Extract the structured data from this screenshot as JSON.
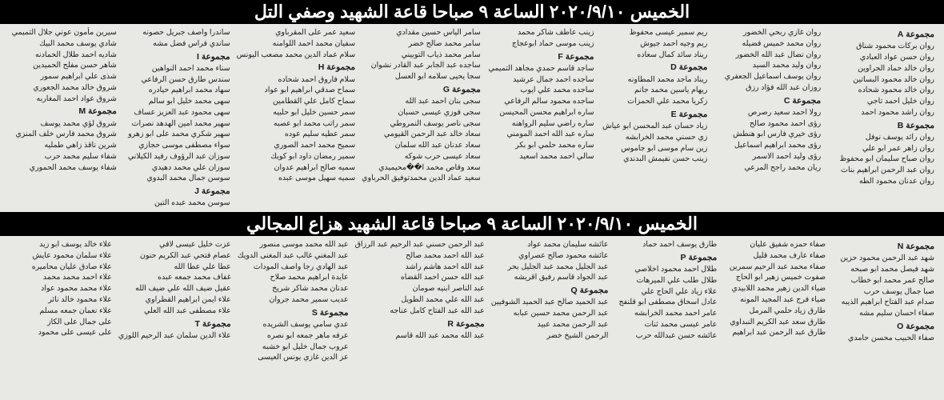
{
  "banner1": "الخميس ٢٠٢٠/٩/١٠ الساعة ٩ صباحا قاعة الشهيد وصفي التل",
  "banner2": "الخميس ٢٠٢٠/٩/١٠ الساعة ٩ صباحا قاعة الشهيد هزاع المجالي",
  "sec1": {
    "cols": [
      [
        {
          "label": "مجموعة A"
        },
        "روان بركات محمود شناق",
        "روان حسن عواد العبادي",
        "روان خالد حماد الجراوين",
        "روان خالد محمود البساتين",
        "روان خالد محمود شحاده",
        "روان خليل احمد تاجي",
        "روان راشد محمود احمد",
        {
          "label": "مجموعة B"
        },
        "روان رائد يوسف نوفل",
        "روان زاهر عمر ابو علي",
        "روان صباح سليمان ابو محفوظ",
        "روان عبد الرحمن ابراهيم بنات",
        "روان عدنان محمود الطه"
      ],
      [
        "روان غازي ربحي الخضور",
        "روان محمد خميس فضيله",
        "روان نضال عبد الله الخضور",
        "روان وليد محمد السيد",
        "روان يوسف اسماعيل الجعفري",
        "روزان عبد الله فؤاد رزق",
        {
          "label": "مجموعة C"
        },
        "رولا احمد سعيد رصرص",
        "رؤى احمد محمود صالح",
        "رؤى خيري فارس ابو هنطش",
        "رؤى محمد ابراهيم اسماعيل",
        "رؤى وليد احمد الاسمر",
        "ريان محمد راجح المرعي"
      ],
      [
        "ريم سمير عيسى محفوظ",
        "ريم وجيه احمد جيوش",
        "ريناد سائد كمال سعاده",
        {
          "label": "مجموعة D"
        },
        "ريناد ماجد محمد المطاونه",
        "ريهام ياسين محمد جانم",
        "زكريا محمد علي الحمزات",
        {
          "label": "مجموعة E"
        },
        "زياد حسان عبد المحسن ابو عياش",
        "زي حسني محمد الخرابشه",
        "زين سام موسى ابو جاموس",
        "زينب حسن نفيمش البدندي"
      ],
      [
        "زينب عاطف شاكر محمد",
        "زينب موسى حماد ابوعجاج",
        {
          "label": "مجموعة F"
        },
        "ساجد قاسم حمدي مجاهد التميمي",
        "ساجده احمد جمال عرشيد",
        "ساجده محمد علي ايوب",
        "ساجده محمود سالم الرفاعي",
        "ساره ابراهيم محسن المحيسن",
        "ساره راضي سليم الرواهنه",
        "ساره عبد الله احمد المومني",
        "ساره محمد حلمي ابو بكر",
        "سالي احمد محمد اسعيد"
      ],
      [
        "سامر الياس حسين مقدادي",
        "سامر محمد صالح خضر",
        "سامر محمد ذياب التوبيني",
        "ساجده عبد الجابر عبد القادر نشوان",
        "سجا يحيى سلامه ابو العسل",
        {
          "label": "مجموعة G"
        },
        "سجى بنان احمد عبد الله",
        "سجى فوزي عيسى حسبان",
        "سجى ناصر يوسف النمروطي",
        "سعاد خالد عبد الرحمن القيومي",
        "سعاد عدنان عبد الله سلمان",
        "سعاد عيسى حرب شوكه",
        "سعد وقاص محمد ا��محيميدي",
        "سعيد عماد الدين محمدتوفيق الحرباوي"
      ],
      [
        "سعيد عمر على المقرباوي",
        "سفيان محمد احمد اللوامنه",
        "سلام عماد الدين محمد مصعب اليونس",
        {
          "label": "مجموعة H"
        },
        "سلام فاروق احمد شحاده",
        "سماح صدقي ابراهيم ابو عواد",
        "سماح كامل علي القطامين",
        "سمر حسين خليل ابو حلبيه",
        "سمر راتب محمد ابو عصبه",
        "سمر عطيه سليم عوده",
        "سميح محمد احمد الصوري",
        "سمير رمضان داود ابو كويك",
        "سميه صالح ابراهيم عدوان",
        "سميه سهيل موسى عبده"
      ],
      [
        "ساندرا واصف جبريل حصونه",
        "ساندي فراس فضل مشه",
        {
          "label": "مجموعة I"
        },
        "سناء محمد احمد النواهين",
        "سندس طارق حسن الرفاعي",
        "سهاد محمد ابراهيم حيادره",
        "سهى محمد خليل ابو سالم",
        "سهى محمود عبد العزيز عساف",
        "سهير محمد امين الهدهد نصرات",
        "سهير شكري محمد على ابو زهرو",
        "سواء مصطفى موسى حجازي",
        "سوزان عبد الرؤوف رفيد الكيلاني",
        "سوزان علي محمد دهيدي",
        "سوسن جمال محمد البدوي",
        {
          "label": "مجموعة J"
        },
        "سوسن محمد عبده التين"
      ],
      [
        "سيرين مأمون عوني جلال التميمي",
        "شادي يوسف محمد البيك",
        "شاديه احمد طلال الحمادنه",
        "شاهر حسن مفلح الحميدين",
        "شذى علي ابراهيم سمور",
        "شروق خالد محمد الجعوري",
        "شروق عواد احمد المغاربه",
        {
          "label": "مجموعة M"
        },
        "شروق لؤي محمد يوسف",
        "شروق محمد فارس خلف المنزي",
        "شرين ناقذ زاهي طمليه",
        "شفاء سليم محمد حرب",
        "شفاء يوسف محمد الحموري"
      ]
    ]
  },
  "sec2": {
    "cols": [
      [
        {
          "label": "مجموعة N"
        },
        "شهد عبد الرحمن محمود حزين",
        "شهد فيصل محمد ابو صبحه",
        "صالح عمر محمد ابو خطاب",
        "صبا جمال يوسف حرب",
        "صدام عبد الفتاح ابراهيم الذيبه",
        "صفاء احسان سليم مشه",
        {
          "label": "مجموعة O"
        },
        "صفاء الحبيب محسن حامدي"
      ],
      [
        "صفاء حمزه شفيق عليان",
        "صفاء عارف محمد قليل",
        "صفاء محمد عبد الرحيم سمرين",
        "صفوت خميس زهير ابو الحاج",
        "ضياء الدين زهير محمد اللابيدي",
        "ضياء فرج عبد المجيد المونه",
        "طارق زياد حلمي المرمل",
        "طارق سعد عبد الكريم النبداوي",
        "طارق عبد الرحمن عبد ابراهيم"
      ],
      [
        "طارق يوسف احمد حماد",
        {
          "label": "مجموعة P"
        },
        "طلال احمد محمود اخلاصي",
        "طلال طلب علي الميرهات",
        "علاء زياد علي الحاج علي",
        "عادل اسحاق مصطفى ابو قلنفج",
        "عامر احمد محمد الخرابشه",
        "عامر عيسى محمد ثنات",
        "عائشه حسن عبدالله حرب"
      ],
      [
        "عائشه سليمان محمد عواد",
        "عائشه محمود صالح عصراوي",
        "عبد الجليل محمد عبد الجليل بحر",
        "عبد الجواد قاسم رفيق اقريشه",
        {
          "label": "مجموعة Q"
        },
        "عبد الحميد صالح عبد الحميد الشوفيين",
        "عبد الرحمن محمد حسين عبابه",
        "عبد الرحمن محمد عبيد",
        "الرحمن الشيخ خضر"
      ],
      [
        "عبد الرحمن حسني عبد الرحيم عبد الرزاق",
        "عبد الله احمد محمد صالح",
        "عبد الله احمد هاشم راشد",
        "عبد الله حسن احمد القضاه",
        "عبد الناصر ابنيه صومان",
        "عبد الله علي محمد الطويل",
        "عبد الله عبد الفتاح كامل عناجه",
        {
          "label": "مجموعة R"
        },
        "عبد الله محمد عبد الله قاسم"
      ],
      [
        "عبد الله محمد موسى منصور",
        "عبد المغني غالب عبد المغنى الدويك",
        "عبد الهادي رجا واصف المودات",
        "عايدة ابراهيم محمد صلاح",
        "عدنان محمد شاكر شريخ",
        "عديب سمير محمد جروان",
        {
          "label": "مجموعة S"
        },
        "عدي سامي يوسف الشريده",
        "عرفه ماهر جمعه ابو نصره",
        "عروب جمال خليل ابو خشبه",
        "عز الدين غازي يونس العيسى"
      ],
      [
        "عزت خليل عيسى لافي",
        "عصام فتحي عبد الكريم حنون",
        "عطا علي عطا الله",
        "غفاف محمد جمعه عبده",
        "عقيل ضيف الله علي ضيف الله",
        "علاء ايمن ابراهيم القطراوي",
        "علاء مصطفى عبد الله العلي",
        {
          "label": "مجموعة T"
        },
        "علاء الدين سلمان عبد الرحيم اللوزي"
      ],
      [
        "علاء خالد يوسف ابو زيد",
        "علاء سلمان محمود عايش",
        "علاء صادق عليان محاميره",
        "علاء احمد محمد محمد",
        "علاء محمد محمود عواد",
        "علاء محمود خالد نائر",
        "علاء نعمان جمعه مسلم",
        "على جمال على الكاز",
        "على عيسى على محمود"
      ]
    ]
  }
}
